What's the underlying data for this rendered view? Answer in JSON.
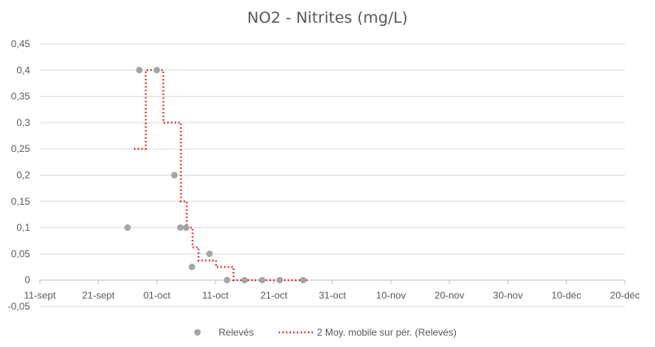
{
  "chart_data": {
    "type": "scatter",
    "title": "NO2 - Nitrites (mg/L)",
    "xlabel": "",
    "ylabel": "",
    "x_axis": {
      "type": "date",
      "min": "2023-09-11",
      "max": "2023-12-20",
      "tick_labels": [
        "11-sept",
        "21-sept",
        "01-oct",
        "11-oct",
        "21-oct",
        "31-oct",
        "10-nov",
        "20-nov",
        "30-nov",
        "10-déc",
        "20-déc"
      ],
      "tick_dates": [
        "2023-09-11",
        "2023-09-21",
        "2023-10-01",
        "2023-10-11",
        "2023-10-21",
        "2023-10-31",
        "2023-11-10",
        "2023-11-20",
        "2023-11-30",
        "2023-12-10",
        "2023-12-20"
      ]
    },
    "y_axis": {
      "min": -0.05,
      "max": 0.45,
      "tick_values": [
        -0.05,
        0,
        0.05,
        0.1,
        0.15,
        0.2,
        0.25,
        0.3,
        0.35,
        0.4,
        0.45
      ],
      "tick_labels": [
        "-0,05",
        "0",
        "0,05",
        "0,1",
        "0,15",
        "0,2",
        "0,25",
        "0,3",
        "0,35",
        "0,4",
        "0,45"
      ]
    },
    "grid": {
      "horizontal": true,
      "vertical": false
    },
    "legend": {
      "position": "bottom"
    },
    "series": [
      {
        "name": "Relevés",
        "kind": "scatter",
        "color": "#a5a5a5",
        "points": [
          {
            "x": "2023-09-26",
            "y": 0.1
          },
          {
            "x": "2023-09-28",
            "y": 0.4
          },
          {
            "x": "2023-10-01",
            "y": 0.4
          },
          {
            "x": "2023-10-04",
            "y": 0.2
          },
          {
            "x": "2023-10-05",
            "y": 0.1
          },
          {
            "x": "2023-10-06",
            "y": 0.1
          },
          {
            "x": "2023-10-07",
            "y": 0.025
          },
          {
            "x": "2023-10-10",
            "y": 0.05
          },
          {
            "x": "2023-10-13",
            "y": 0
          },
          {
            "x": "2023-10-16",
            "y": 0
          },
          {
            "x": "2023-10-19",
            "y": 0
          },
          {
            "x": "2023-10-22",
            "y": 0
          },
          {
            "x": "2023-10-26",
            "y": 0
          }
        ]
      },
      {
        "name": "2 Moy. mobile sur pér. (Relevés)",
        "kind": "step-line",
        "color": "#e31a1c",
        "dash": "dotted"
      }
    ]
  }
}
